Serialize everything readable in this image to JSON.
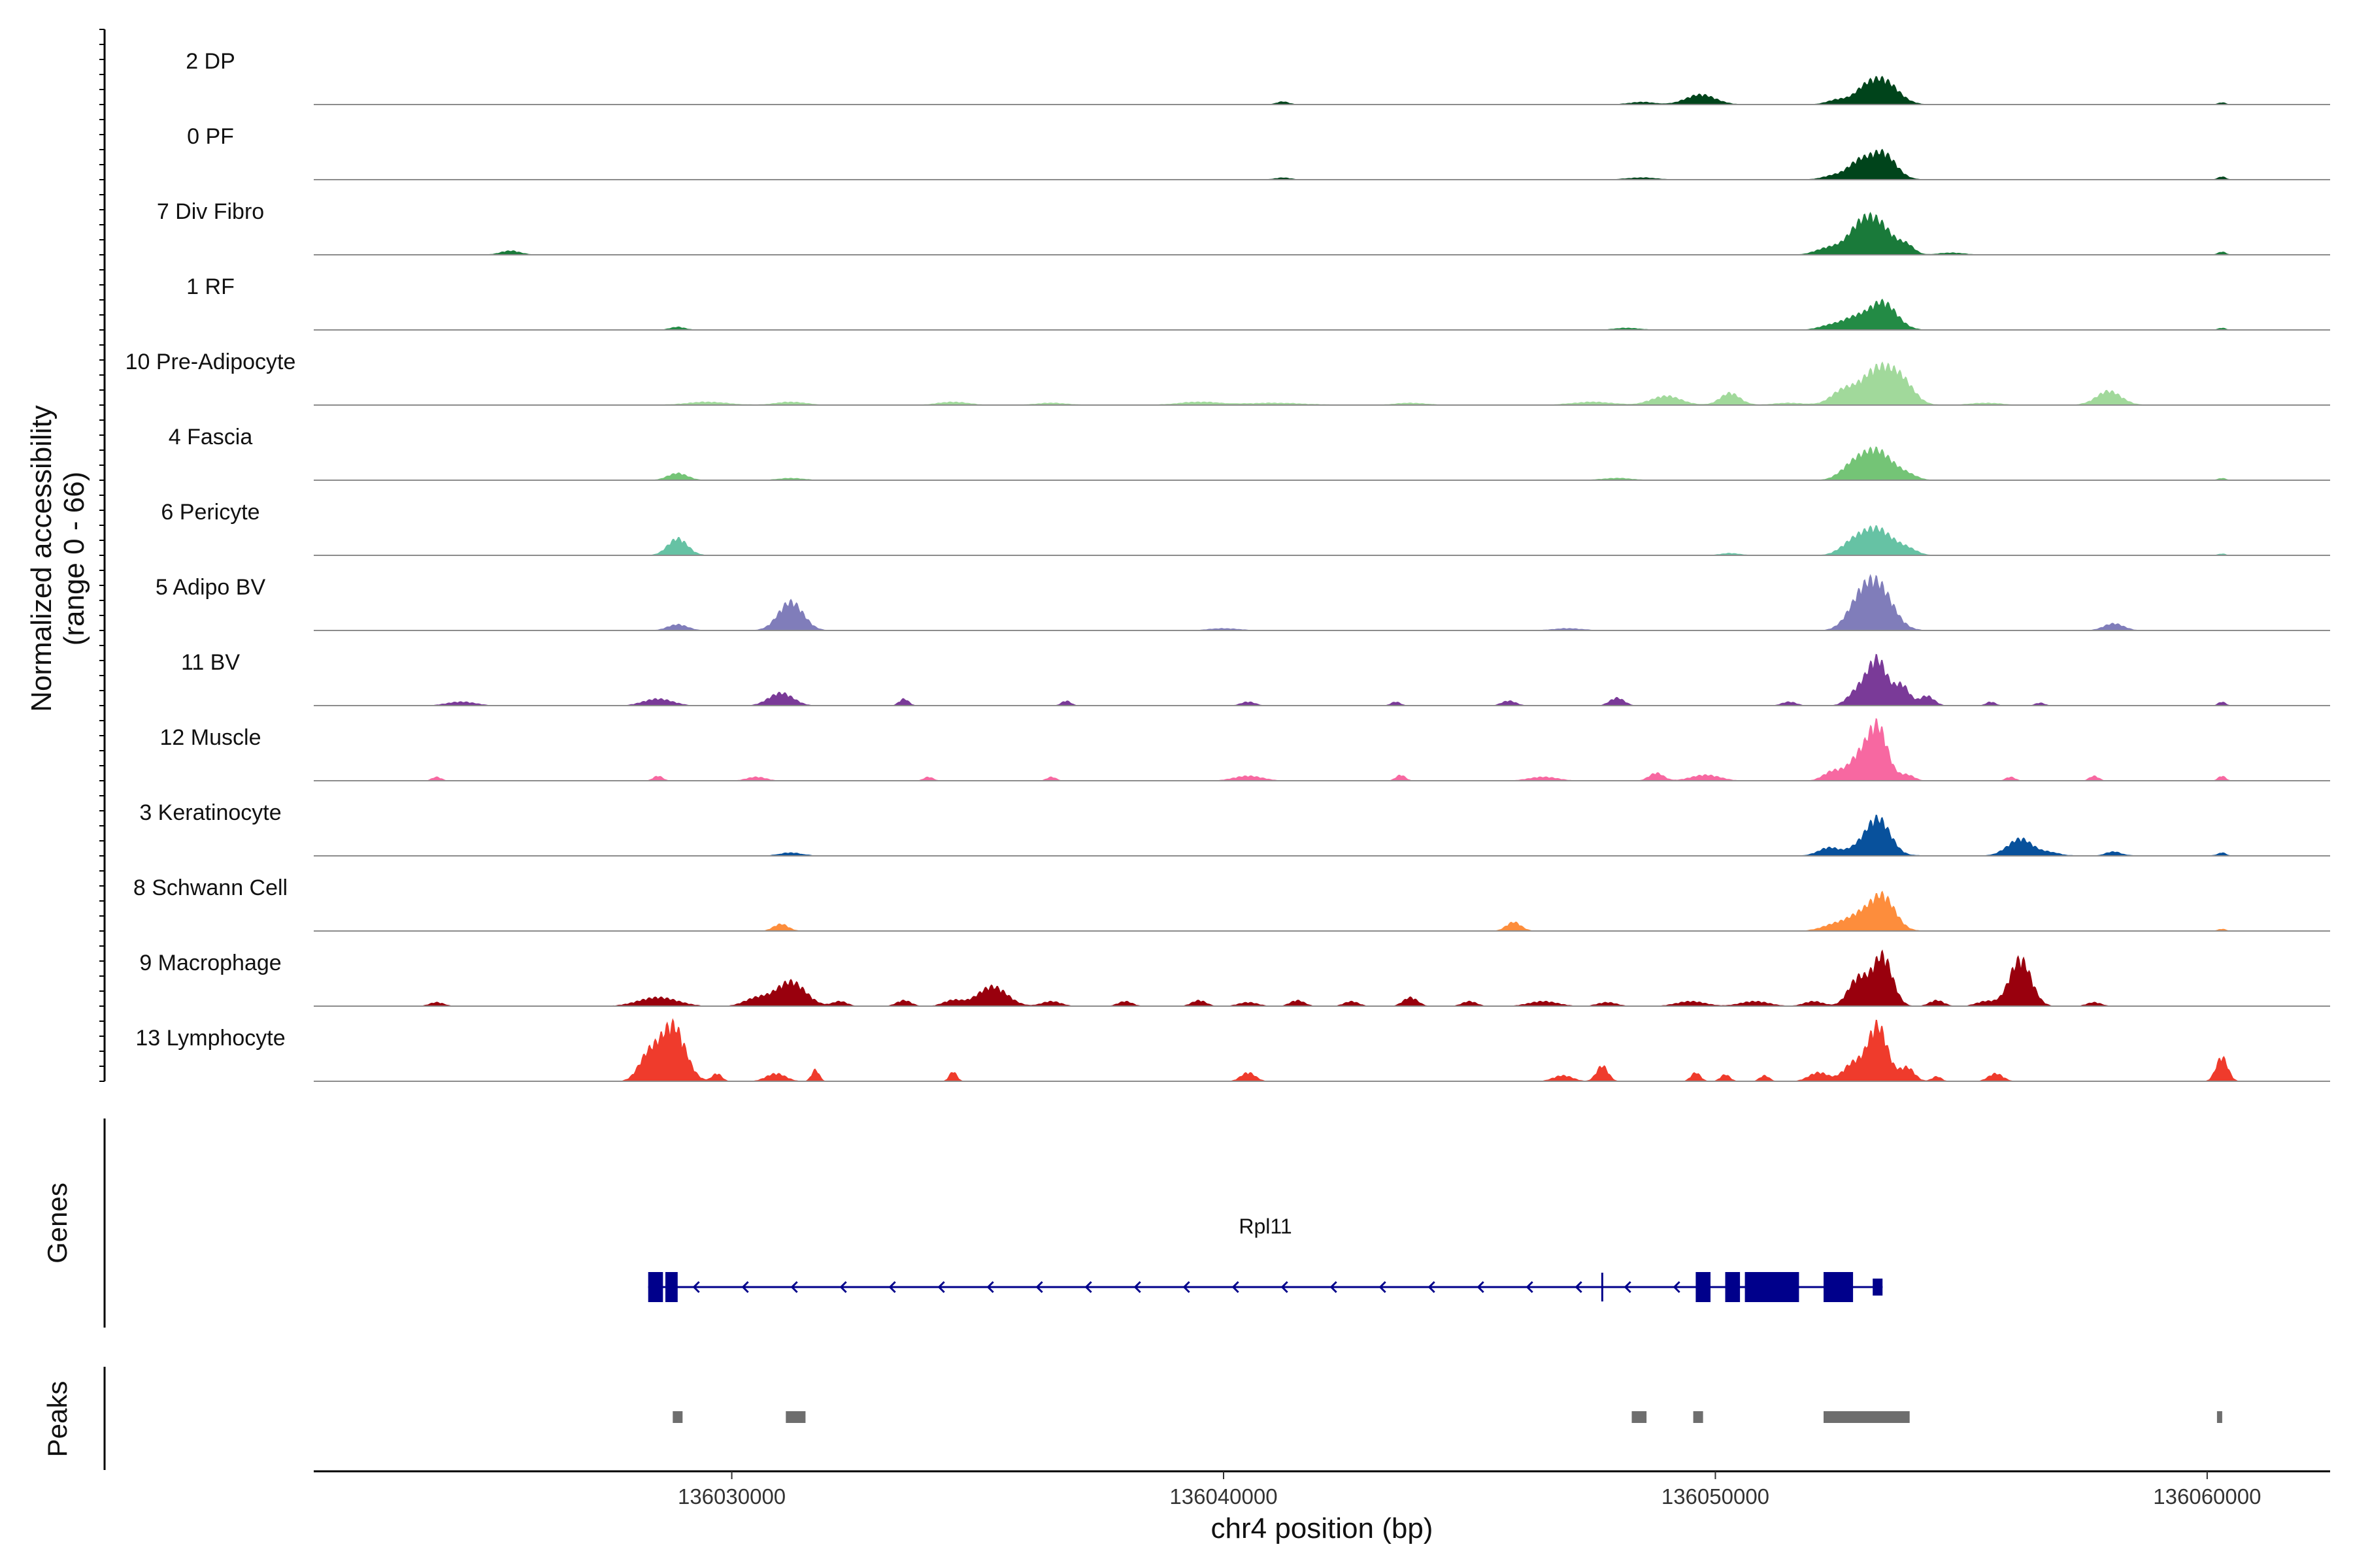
{
  "chart_data": {
    "type": "area",
    "chromosome": "chr4",
    "xlim": [
      136021500,
      136062500
    ],
    "x_ticks": [
      136030000,
      136040000,
      136050000,
      136060000
    ],
    "xlabel": "chr4 position (bp)",
    "ylabel_line1": "Normalized accessibility",
    "ylabel_line2": "(range 0 - 66)",
    "ylim": [
      0,
      66
    ],
    "tracks": [
      {
        "name": "2 DP",
        "color": "#00441b",
        "base": 0.25,
        "peaks": [
          [
            136053400,
            25,
            300
          ],
          [
            136053000,
            9,
            200
          ],
          [
            136052500,
            5,
            220
          ],
          [
            136049700,
            10,
            300
          ],
          [
            136048500,
            2.5,
            250
          ],
          [
            136041200,
            3,
            120
          ],
          [
            136060300,
            2,
            80
          ]
        ]
      },
      {
        "name": "0 PF",
        "color": "#00441b",
        "base": 0.3,
        "peaks": [
          [
            136053400,
            27,
            260
          ],
          [
            136052900,
            16,
            220
          ],
          [
            136052400,
            4,
            220
          ],
          [
            136048500,
            2,
            300
          ],
          [
            136041200,
            2,
            150
          ],
          [
            136060300,
            3,
            80
          ]
        ]
      },
      {
        "name": "7 Div Fibro",
        "color": "#1a7a3a",
        "base": 0.3,
        "peaks": [
          [
            136053300,
            31,
            300
          ],
          [
            136052900,
            20,
            250
          ],
          [
            136052300,
            7,
            250
          ],
          [
            136053900,
            8,
            150
          ],
          [
            136025500,
            4,
            200
          ],
          [
            136054800,
            2,
            250
          ],
          [
            136060300,
            3,
            80
          ]
        ]
      },
      {
        "name": "1 RF",
        "color": "#238b45",
        "base": 0.25,
        "peaks": [
          [
            136053400,
            28,
            280
          ],
          [
            136052800,
            11,
            250
          ],
          [
            136052300,
            4,
            220
          ],
          [
            136028900,
            3,
            150
          ],
          [
            136048200,
            2,
            250
          ],
          [
            136060300,
            2,
            80
          ]
        ]
      },
      {
        "name": "10 Pre-Adipocyte",
        "color": "#a1d99b",
        "base": 0.4,
        "peaks": [
          [
            136053300,
            36,
            320
          ],
          [
            136053800,
            20,
            250
          ],
          [
            136052600,
            14,
            250
          ],
          [
            136058000,
            14,
            250
          ],
          [
            136050300,
            12,
            200
          ],
          [
            136049000,
            9,
            300
          ],
          [
            136047500,
            3,
            400
          ],
          [
            136029500,
            3,
            400
          ],
          [
            136031200,
            3,
            300
          ],
          [
            136034500,
            3,
            300
          ],
          [
            136036500,
            2,
            300
          ],
          [
            136039500,
            3,
            400
          ],
          [
            136041000,
            2,
            600
          ],
          [
            136043800,
            2,
            300
          ],
          [
            136051500,
            2,
            300
          ],
          [
            136055500,
            2,
            300
          ]
        ]
      },
      {
        "name": "4 Fascia",
        "color": "#74c476",
        "base": 0.3,
        "peaks": [
          [
            136053300,
            29,
            300
          ],
          [
            136052800,
            14,
            250
          ],
          [
            136053900,
            5,
            200
          ],
          [
            136028900,
            7,
            200
          ],
          [
            136031200,
            2,
            250
          ],
          [
            136048000,
            2,
            300
          ],
          [
            136060300,
            2,
            80
          ]
        ]
      },
      {
        "name": "6 Pericyte",
        "color": "#66c2a4",
        "base": 0.3,
        "peaks": [
          [
            136053300,
            26,
            300
          ],
          [
            136052800,
            12,
            250
          ],
          [
            136053900,
            6,
            200
          ],
          [
            136028900,
            17,
            200
          ],
          [
            136050300,
            2,
            200
          ],
          [
            136060300,
            1.5,
            80
          ]
        ]
      },
      {
        "name": "5 Adipo BV",
        "color": "#807dba",
        "base": 0.3,
        "peaks": [
          [
            136053300,
            45,
            300
          ],
          [
            136052900,
            20,
            250
          ],
          [
            136031200,
            29,
            250
          ],
          [
            136028900,
            6,
            200
          ],
          [
            136058100,
            7,
            200
          ],
          [
            136047000,
            2,
            300
          ],
          [
            136040000,
            2,
            300
          ]
        ]
      },
      {
        "name": "11 BV",
        "color": "#7a3a98",
        "base": 0.0,
        "peaks": [
          [
            136053300,
            46,
            200
          ],
          [
            136053800,
            20,
            150
          ],
          [
            136052900,
            15,
            200
          ],
          [
            136054300,
            10,
            150
          ],
          [
            136031000,
            13,
            250
          ],
          [
            136048000,
            8,
            150
          ],
          [
            136028500,
            7,
            300
          ],
          [
            136024500,
            4,
            300
          ],
          [
            136033500,
            7,
            100
          ],
          [
            136036800,
            5,
            100
          ],
          [
            136040500,
            4,
            150
          ],
          [
            136043500,
            4,
            100
          ],
          [
            136045800,
            5,
            150
          ],
          [
            136051500,
            4,
            150
          ],
          [
            136055600,
            4,
            100
          ],
          [
            136056600,
            3,
            100
          ],
          [
            136060300,
            4,
            80
          ]
        ]
      },
      {
        "name": "12 Muscle",
        "color": "#f768a1",
        "base": 0.0,
        "peaks": [
          [
            136053300,
            55,
            200
          ],
          [
            136052900,
            22,
            200
          ],
          [
            136052400,
            10,
            200
          ],
          [
            136053900,
            6,
            150
          ],
          [
            136040500,
            5,
            300
          ],
          [
            136048800,
            8,
            150
          ],
          [
            136049800,
            6,
            300
          ],
          [
            136028500,
            5,
            100
          ],
          [
            136030500,
            4,
            200
          ],
          [
            136034000,
            4,
            100
          ],
          [
            136036500,
            4,
            100
          ],
          [
            136043600,
            6,
            100
          ],
          [
            136046500,
            4,
            300
          ],
          [
            136056000,
            4,
            100
          ],
          [
            136057700,
            5,
            100
          ],
          [
            136060300,
            5,
            80
          ],
          [
            136024000,
            4,
            100
          ]
        ]
      },
      {
        "name": "3 Keratinocyte",
        "color": "#08519c",
        "base": 0.6,
        "peaks": [
          [
            136053300,
            38,
            250
          ],
          [
            136056200,
            17,
            250
          ],
          [
            136052300,
            8,
            200
          ],
          [
            136052800,
            5,
            200
          ],
          [
            136031200,
            3,
            200
          ],
          [
            136056800,
            3,
            200
          ],
          [
            136058100,
            4,
            150
          ],
          [
            136060300,
            3,
            80
          ]
        ]
      },
      {
        "name": "8 Schwann Cell",
        "color": "#fd8d3c",
        "base": 0.3,
        "peaks": [
          [
            136053400,
            35,
            250
          ],
          [
            136052900,
            14,
            250
          ],
          [
            136052400,
            6,
            250
          ],
          [
            136031000,
            7,
            150
          ],
          [
            136045900,
            9,
            150
          ],
          [
            136060300,
            2,
            80
          ]
        ]
      },
      {
        "name": "9 Macrophage",
        "color": "#99000d",
        "base": 0.0,
        "peaks": [
          [
            136053400,
            51,
            200
          ],
          [
            136052900,
            28,
            200
          ],
          [
            136056200,
            48,
            220
          ],
          [
            136031200,
            25,
            300
          ],
          [
            136035300,
            20,
            300
          ],
          [
            136028500,
            9,
            400
          ],
          [
            136030500,
            8,
            250
          ],
          [
            136032200,
            5,
            150
          ],
          [
            136033500,
            6,
            150
          ],
          [
            136034500,
            6,
            200
          ],
          [
            136036500,
            5,
            200
          ],
          [
            136038000,
            5,
            150
          ],
          [
            136039500,
            6,
            150
          ],
          [
            136040500,
            4,
            200
          ],
          [
            136041500,
            6,
            150
          ],
          [
            136042600,
            5,
            150
          ],
          [
            136043800,
            9,
            150
          ],
          [
            136045000,
            5,
            150
          ],
          [
            136046500,
            5,
            300
          ],
          [
            136047800,
            4,
            200
          ],
          [
            136049500,
            5,
            300
          ],
          [
            136050800,
            5,
            300
          ],
          [
            136052000,
            5,
            200
          ],
          [
            136054500,
            6,
            150
          ],
          [
            136055500,
            5,
            200
          ],
          [
            136057700,
            4,
            150
          ],
          [
            136024000,
            4,
            150
          ]
        ]
      },
      {
        "name": "13 Lymphocyte",
        "color": "#ef3b2c",
        "base": 0.0,
        "peaks": [
          [
            136028800,
            57,
            250
          ],
          [
            136028300,
            25,
            200
          ],
          [
            136053300,
            57,
            200
          ],
          [
            136052800,
            18,
            200
          ],
          [
            136053900,
            14,
            150
          ],
          [
            136060300,
            25,
            120
          ],
          [
            136047700,
            16,
            120
          ],
          [
            136031700,
            12,
            80
          ],
          [
            136034500,
            10,
            80
          ],
          [
            136040500,
            9,
            150
          ],
          [
            136029700,
            8,
            100
          ],
          [
            136030900,
            8,
            200
          ],
          [
            136046900,
            6,
            200
          ],
          [
            136049600,
            9,
            100
          ],
          [
            136050200,
            7,
            100
          ],
          [
            136051000,
            6,
            100
          ],
          [
            136052100,
            9,
            200
          ],
          [
            136054500,
            5,
            100
          ],
          [
            136055700,
            8,
            150
          ]
        ]
      }
    ],
    "genes_panel_label": "Genes",
    "gene": {
      "name": "Rpl11",
      "strand": "-",
      "start": 136028300,
      "end": 136053400,
      "exons": [
        [
          136028300,
          136028600,
          "cds"
        ],
        [
          136028650,
          136028900,
          "cds"
        ],
        [
          136049600,
          136049900,
          "cds"
        ],
        [
          136050200,
          136050500,
          "cds"
        ],
        [
          136050600,
          136051700,
          "cds"
        ],
        [
          136052200,
          136052800,
          "cds"
        ],
        [
          136053200,
          136053400,
          "utr"
        ]
      ],
      "marker": 136047700
    },
    "peaks_panel_label": "Peaks",
    "peak_regions": [
      [
        136028800,
        136029000
      ],
      [
        136031100,
        136031500
      ],
      [
        136048300,
        136048600
      ],
      [
        136049550,
        136049750
      ],
      [
        136052200,
        136053950
      ],
      [
        136060200,
        136060300
      ]
    ]
  }
}
